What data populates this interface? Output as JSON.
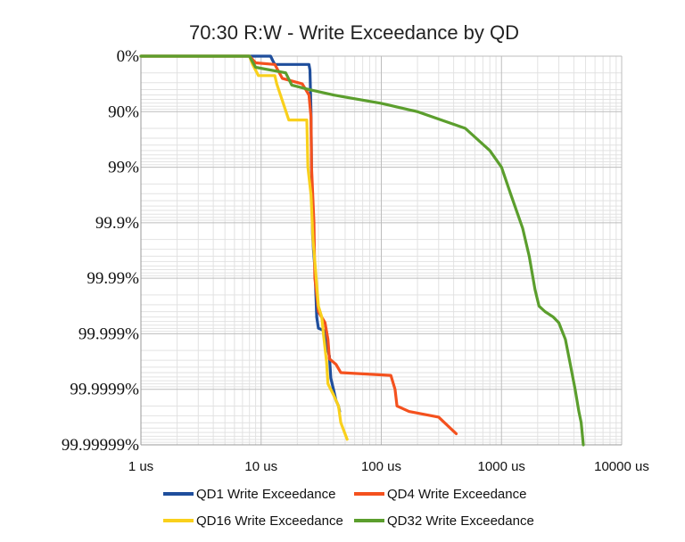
{
  "chart_data": {
    "type": "line",
    "title": "70:30 R:W - Write Exceedance by QD",
    "xlabel": "",
    "ylabel": "",
    "x_scale": "log",
    "x_range_us": [
      1,
      10000
    ],
    "x_ticks": [
      {
        "value": 1,
        "label": "1 us"
      },
      {
        "value": 10,
        "label": "10 us"
      },
      {
        "value": 100,
        "label": "100 us"
      },
      {
        "value": 1000,
        "label": "1000 us"
      },
      {
        "value": 10000,
        "label": "10000 us"
      }
    ],
    "y_scale": "log-exceedance (nines)",
    "y_ticks": [
      {
        "nines": 0,
        "label": "0%"
      },
      {
        "nines": 1,
        "label": "90%"
      },
      {
        "nines": 2,
        "label": "99%"
      },
      {
        "nines": 3,
        "label": "99.9%"
      },
      {
        "nines": 4,
        "label": "99.99%"
      },
      {
        "nines": 5,
        "label": "99.999%"
      },
      {
        "nines": 6,
        "label": "99.9999%"
      },
      {
        "nines": 7,
        "label": "99.99999%"
      }
    ],
    "grid": true,
    "legend_position": "bottom",
    "series": [
      {
        "name": "QD1 Write Exceedance",
        "color": "#1f4e9c",
        "points": [
          [
            1,
            0
          ],
          [
            8,
            0
          ],
          [
            12,
            0
          ],
          [
            12.5,
            0.08
          ],
          [
            13,
            0.15
          ],
          [
            25,
            0.15
          ],
          [
            25.5,
            0.25
          ],
          [
            26,
            1
          ],
          [
            26.3,
            2
          ],
          [
            26.8,
            3.2
          ],
          [
            27.3,
            3.5
          ],
          [
            28,
            3.8
          ],
          [
            29,
            4.7
          ],
          [
            30,
            4.9
          ],
          [
            34,
            4.95
          ],
          [
            35,
            5.2
          ],
          [
            37,
            5.4
          ],
          [
            38,
            5.8
          ],
          [
            40,
            6.0
          ],
          [
            42,
            6.2
          ],
          [
            44,
            6.3
          ],
          [
            45,
            6.4
          ]
        ]
      },
      {
        "name": "QD4 Write Exceedance",
        "color": "#f4511e",
        "points": [
          [
            1,
            0
          ],
          [
            8,
            0
          ],
          [
            9,
            0.12
          ],
          [
            13,
            0.15
          ],
          [
            15,
            0.4
          ],
          [
            22,
            0.5
          ],
          [
            25,
            0.7
          ],
          [
            26,
            1.1
          ],
          [
            26.3,
            2
          ],
          [
            27.5,
            3
          ],
          [
            28,
            4
          ],
          [
            29,
            4.3
          ],
          [
            30,
            4.6
          ],
          [
            34,
            4.8
          ],
          [
            36,
            5.1
          ],
          [
            37,
            5.45
          ],
          [
            42,
            5.55
          ],
          [
            46,
            5.7
          ],
          [
            120,
            5.75
          ],
          [
            130,
            6.0
          ],
          [
            135,
            6.3
          ],
          [
            170,
            6.4
          ],
          [
            300,
            6.5
          ],
          [
            420,
            6.8
          ]
        ]
      },
      {
        "name": "QD16 Write Exceedance",
        "color": "#f9d01c",
        "points": [
          [
            1,
            0
          ],
          [
            8,
            0
          ],
          [
            8.5,
            0.15
          ],
          [
            9.5,
            0.35
          ],
          [
            13,
            0.35
          ],
          [
            13.5,
            0.5
          ],
          [
            15,
            0.8
          ],
          [
            17,
            1.15
          ],
          [
            24,
            1.15
          ],
          [
            24.5,
            2
          ],
          [
            26,
            2.5
          ],
          [
            27,
            3.3
          ],
          [
            28,
            3.7
          ],
          [
            30,
            4.5
          ],
          [
            32,
            4.7
          ],
          [
            33,
            5.0
          ],
          [
            35,
            5.5
          ],
          [
            36,
            5.9
          ],
          [
            40,
            6.1
          ],
          [
            44,
            6.3
          ],
          [
            46,
            6.6
          ],
          [
            52,
            6.9
          ]
        ]
      },
      {
        "name": "QD32 Write Exceedance",
        "color": "#5b9e2d",
        "points": [
          [
            1,
            0
          ],
          [
            8,
            0
          ],
          [
            9,
            0.2
          ],
          [
            16,
            0.3
          ],
          [
            18,
            0.52
          ],
          [
            25,
            0.6
          ],
          [
            40,
            0.7
          ],
          [
            100,
            0.85
          ],
          [
            200,
            1.0
          ],
          [
            500,
            1.3
          ],
          [
            800,
            1.7
          ],
          [
            1000,
            2.0
          ],
          [
            1200,
            2.5
          ],
          [
            1500,
            3.1
          ],
          [
            1700,
            3.6
          ],
          [
            1900,
            4.2
          ],
          [
            2050,
            4.5
          ],
          [
            2300,
            4.6
          ],
          [
            2700,
            4.7
          ],
          [
            3000,
            4.8
          ],
          [
            3400,
            5.1
          ],
          [
            3700,
            5.5
          ],
          [
            4100,
            6.0
          ],
          [
            4400,
            6.4
          ],
          [
            4600,
            6.6
          ],
          [
            4800,
            7.0
          ]
        ]
      }
    ]
  }
}
